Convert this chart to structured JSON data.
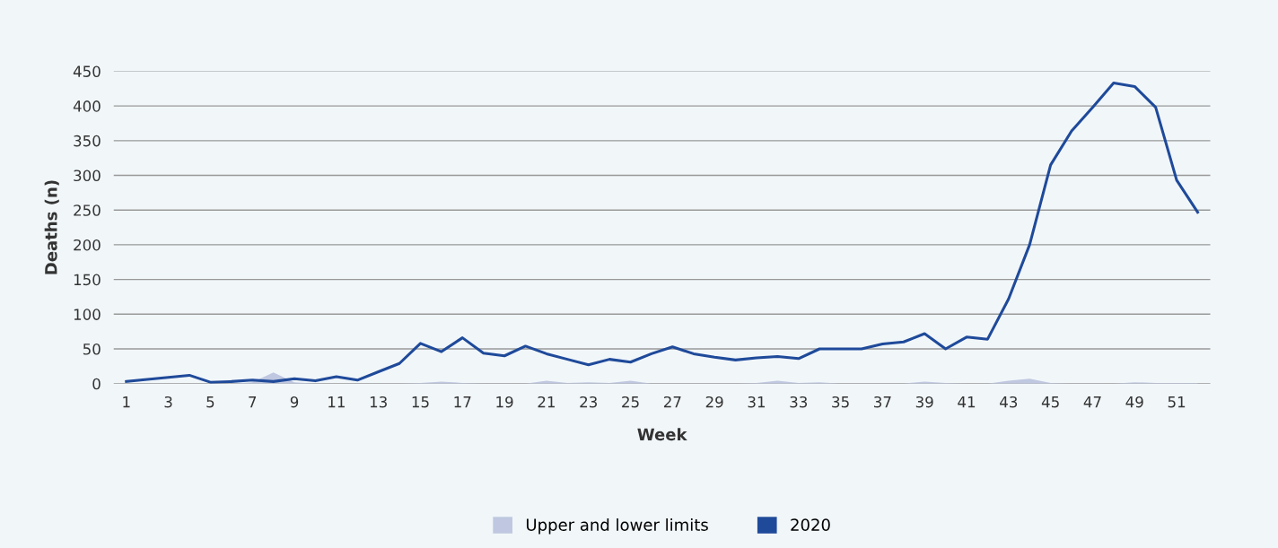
{
  "chart_data": {
    "type": "line",
    "xlabel": "Week",
    "ylabel": "Deaths (n)",
    "x": [
      1,
      2,
      3,
      4,
      5,
      6,
      7,
      8,
      9,
      10,
      11,
      12,
      13,
      14,
      15,
      16,
      17,
      18,
      19,
      20,
      21,
      22,
      23,
      24,
      25,
      26,
      27,
      28,
      29,
      30,
      31,
      32,
      33,
      34,
      35,
      36,
      37,
      38,
      39,
      40,
      41,
      42,
      43,
      44,
      45,
      46,
      47,
      48,
      49,
      50,
      51,
      52
    ],
    "series": [
      {
        "name": "Upper and lower limits",
        "type": "area",
        "color": "#bfc8e0",
        "values": [
          0,
          0,
          0,
          0,
          0,
          0,
          2,
          16,
          2,
          0,
          0,
          0,
          0,
          0,
          1,
          3,
          1,
          0,
          0,
          0,
          4,
          1,
          2,
          1,
          4,
          0,
          0,
          0,
          0,
          0,
          1,
          4,
          1,
          2,
          0,
          0,
          0,
          0,
          3,
          1,
          0,
          0,
          4,
          7,
          1,
          0,
          0,
          0,
          2,
          1,
          1,
          1
        ]
      },
      {
        "name": "2020",
        "color": "#1f4a9a",
        "values": [
          3,
          6,
          9,
          12,
          2,
          3,
          5,
          3,
          7,
          4,
          10,
          5,
          17,
          29,
          58,
          46,
          66,
          44,
          40,
          54,
          43,
          35,
          27,
          35,
          31,
          43,
          53,
          43,
          38,
          34,
          37,
          39,
          36,
          50,
          50,
          50,
          57,
          60,
          72,
          50,
          67,
          64,
          122,
          200,
          315,
          364,
          398,
          433,
          428,
          398,
          293,
          247
        ]
      }
    ],
    "xlim": [
      0.4,
      52.6
    ],
    "xticks": [
      1,
      3,
      5,
      7,
      9,
      11,
      13,
      15,
      17,
      19,
      21,
      23,
      25,
      27,
      29,
      31,
      33,
      35,
      37,
      39,
      41,
      43,
      45,
      47,
      49,
      51
    ],
    "ylim": [
      0,
      450
    ],
    "yticks": [
      0,
      50,
      100,
      150,
      200,
      250,
      300,
      350,
      400,
      450
    ],
    "grid": "y",
    "legend": "bottom"
  }
}
